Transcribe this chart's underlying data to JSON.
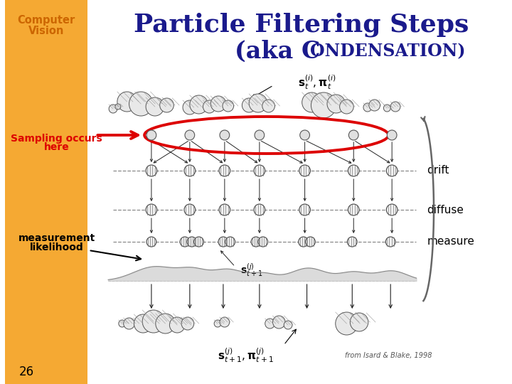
{
  "title_main": "Particle Filtering Steps",
  "title_sub": "(aka CONDENSATION)",
  "sidebar_text_line1": "Computer",
  "sidebar_text_line2": "Vision",
  "sidebar_color": "#F5A933",
  "title_color": "#1a1a8c",
  "sidebar_text_color": "#cc6600",
  "label_sampling": "Sampling occurs\nhere",
  "label_drift": "drift",
  "label_diffuse": "diffuse",
  "label_measure": "measure",
  "label_measurement": "measurement\nlikelihood",
  "label_citation": "from Isard & Blake, 1998",
  "page_number": "26",
  "bg_color": "#ffffff",
  "diagram_color": "#222222",
  "red_ellipse_color": "#dd0000",
  "particle_fill": "#d8d8d8",
  "particle_edge": "#777777",
  "hatch_color": "#888888",
  "curly_arrow_color": "#666666"
}
